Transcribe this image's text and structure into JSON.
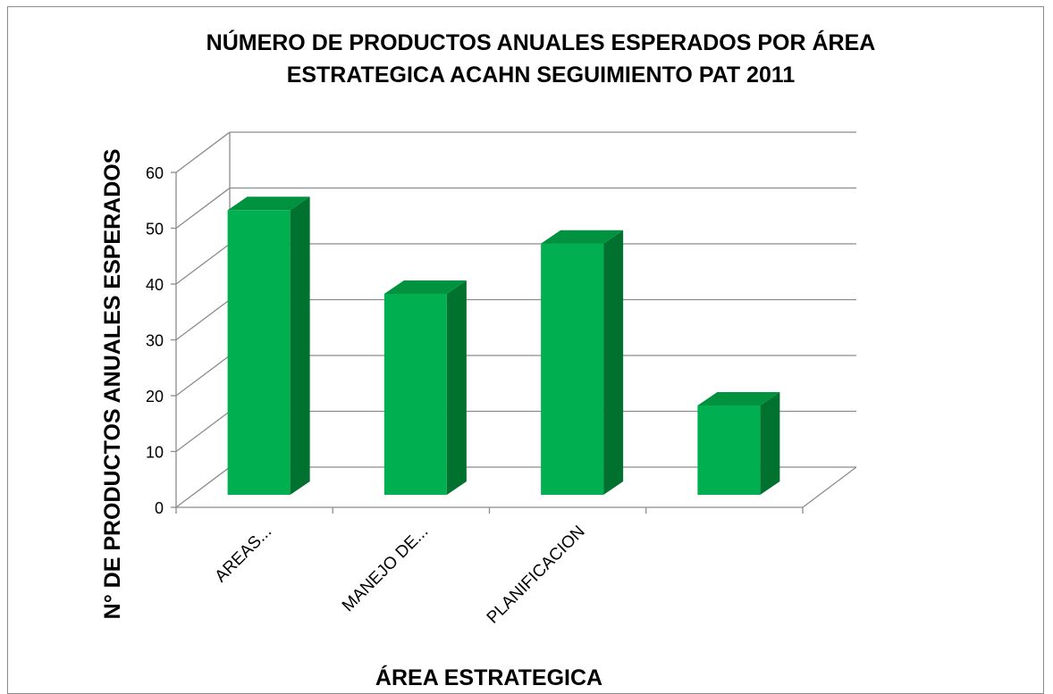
{
  "chart_data": {
    "type": "bar",
    "title": "NÚMERO DE PRODUCTOS ANUALES ESPERADOS POR ÁREA ESTRATEGICA ACAHN SEGUIMIENTO PAT 2011",
    "title_lines": [
      "NÚMERO DE PRODUCTOS ANUALES ESPERADOS POR ÁREA",
      "ESTRATEGICA ACAHN SEGUIMIENTO PAT 2011"
    ],
    "xlabel": "ÁREA ESTRATEGICA",
    "ylabel": "N° DE PRODUCTOS ANUALES ESPERADOS",
    "categories": [
      "AREAS...",
      "MANEJO DE...",
      "PLANIFICACION",
      ""
    ],
    "values": [
      51,
      36,
      45,
      16
    ],
    "ylim": [
      0,
      60
    ],
    "yticks": [
      0,
      10,
      20,
      30,
      40,
      50,
      60
    ],
    "grid": true,
    "style": "3d-column",
    "colors": {
      "front": "#00b050",
      "top": "#00923f",
      "side": "#00712f",
      "grid": "#8c8c8c"
    }
  }
}
